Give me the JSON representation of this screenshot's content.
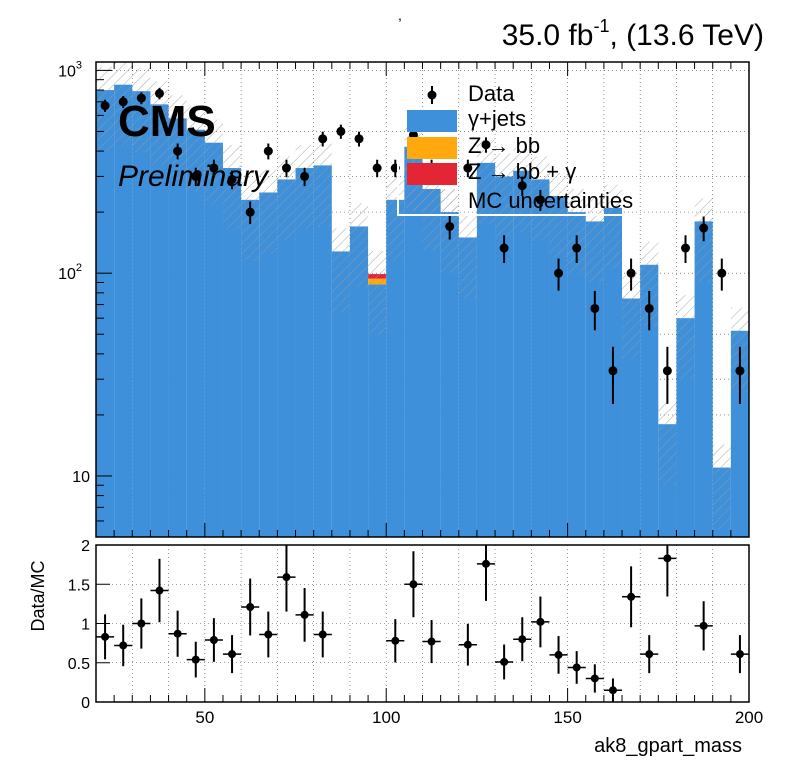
{
  "header": {
    "lumi": "35.0 fb",
    "lumi_exp": "-1",
    "energy": ", (13.6 TeV)",
    "tick_mark": ","
  },
  "branding": {
    "cms": "CMS",
    "preliminary": "Preliminary"
  },
  "legend": {
    "data": "Data",
    "gjets": "γ+jets",
    "zbb": "Z → bb",
    "zbbg": "Z → bb + γ",
    "unc": "MC uncertainties"
  },
  "colors": {
    "gjets": "#3f90da",
    "zbb": "#ffa90e",
    "zbbg": "#e42536",
    "data": "#000000"
  },
  "chart_data": [
    {
      "type": "bar",
      "panel": "main",
      "log_y": true,
      "xlim": [
        20,
        200
      ],
      "ylim": [
        5,
        1100
      ],
      "y_ticks": [
        10,
        100,
        1000
      ],
      "y_tick_labels": [
        "10",
        "10",
        "10"
      ],
      "y_tick_exps": [
        "",
        "2",
        "3"
      ],
      "bin_edges": [
        20,
        25,
        30,
        35,
        40,
        45,
        50,
        55,
        60,
        65,
        70,
        75,
        80,
        85,
        90,
        95,
        100,
        105,
        110,
        115,
        120,
        125,
        130,
        135,
        140,
        145,
        150,
        155,
        160,
        165,
        170,
        175,
        180,
        185,
        190,
        195,
        200
      ],
      "series": [
        {
          "name": "γ+jets",
          "values": [
            800,
            850,
            790,
            680,
            580,
            510,
            440,
            330,
            230,
            250,
            290,
            330,
            340,
            128,
            170,
            88,
            230,
            420,
            260,
            200,
            150,
            350,
            300,
            320,
            290,
            240,
            200,
            180,
            210,
            75,
            110,
            18,
            60,
            180,
            11,
            52
          ]
        },
        {
          "name": "Z → bb",
          "values": [
            0,
            0,
            0,
            0,
            0,
            0,
            0,
            0,
            0,
            0,
            0,
            0,
            0,
            0,
            0,
            6,
            0,
            0,
            0,
            0,
            0,
            0,
            0,
            0,
            0,
            0,
            0,
            0,
            0,
            0,
            0,
            0,
            0,
            0,
            0,
            0
          ]
        },
        {
          "name": "Z → bb + γ",
          "values": [
            0,
            0,
            0,
            0,
            0,
            0,
            0,
            0,
            0,
            0,
            0,
            0,
            0,
            0,
            0,
            5,
            0,
            0,
            0,
            0,
            0,
            0,
            0,
            0,
            0,
            0,
            0,
            0,
            0,
            0,
            0,
            0,
            0,
            0,
            0,
            0
          ]
        }
      ],
      "data": {
        "name": "Data",
        "x": [
          22.5,
          27.5,
          32.5,
          37.5,
          42.5,
          47.5,
          52.5,
          57.5,
          62.5,
          67.5,
          72.5,
          77.5,
          82.5,
          87.5,
          92.5,
          97.5,
          102.5,
          107.5,
          112.5,
          117.5,
          122.5,
          127.5,
          132.5,
          137.5,
          142.5,
          147.5,
          152.5,
          157.5,
          162.5,
          167.5,
          172.5,
          177.5,
          182.5,
          187.5,
          192.5,
          197.5
        ],
        "y": [
          670,
          700,
          730,
          770,
          400,
          300,
          330,
          290,
          200,
          400,
          330,
          300,
          460,
          500,
          460,
          330,
          330,
          480,
          330,
          170,
          330,
          430,
          133,
          270,
          230,
          100,
          133,
          67,
          33,
          100,
          67,
          33,
          133,
          167,
          100,
          33
        ]
      },
      "xlabel": "",
      "ylabel": ""
    },
    {
      "type": "scatter",
      "panel": "ratio",
      "xlim": [
        20,
        200
      ],
      "ylim": [
        0,
        2
      ],
      "x_ticks": [
        50,
        100,
        150,
        200
      ],
      "x_tick_labels": [
        "50",
        "100",
        "150",
        "200"
      ],
      "y_ticks": [
        0,
        0.5,
        1,
        1.5,
        2
      ],
      "y_tick_labels": [
        "0",
        "0.5",
        "1",
        "1.5",
        "2"
      ],
      "x": [
        22.5,
        27.5,
        32.5,
        37.5,
        42.5,
        47.5,
        52.5,
        57.5,
        62.5,
        67.5,
        72.5,
        77.5,
        82.5,
        102.5,
        107.5,
        112.5,
        122.5,
        127.5,
        132.5,
        137.5,
        142.5,
        147.5,
        152.5,
        157.5,
        162.5,
        167.5,
        172.5,
        177.5,
        187.5,
        197.5
      ],
      "y": [
        0.83,
        0.72,
        1.0,
        1.42,
        0.87,
        0.54,
        0.79,
        0.61,
        1.21,
        0.86,
        1.59,
        1.11,
        0.86,
        0.78,
        1.5,
        0.77,
        0.73,
        1.76,
        0.51,
        0.8,
        1.02,
        0.6,
        0.44,
        0.3,
        0.15,
        1.34,
        0.61,
        1.83,
        0.97,
        0.61
      ],
      "xlabel": "ak8_gpart_mass",
      "ylabel": "Data/MC"
    }
  ]
}
